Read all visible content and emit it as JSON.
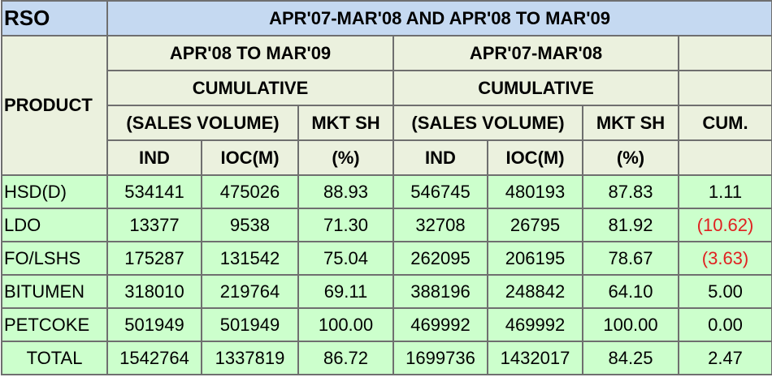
{
  "header": {
    "rso": "RSO",
    "title": "APR'07-MAR'08 AND APR'08 TO MAR'09",
    "product": "PRODUCT",
    "period_current": "APR'08 TO MAR'09",
    "period_previous": "APR'07-MAR'08",
    "cumulative_current": "CUMULATIVE",
    "cumulative_previous": "CUMULATIVE",
    "sales_volume_current": "(SALES VOLUME)",
    "sales_volume_previous": "(SALES VOLUME)",
    "mkt_sh_current": "MKT SH",
    "mkt_sh_previous": "MKT SH",
    "cum": "CUM.",
    "ind_current": "IND",
    "ioc_current": "IOC(M)",
    "pct_current": "(%)",
    "ind_previous": "IND",
    "ioc_previous": "IOC(M)",
    "pct_previous": "(%)"
  },
  "rows": [
    {
      "product": "HSD(D)",
      "ind_cur": "534141",
      "ioc_cur": "475026",
      "mkt_cur": "88.93",
      "ind_prev": "546745",
      "ioc_prev": "480193",
      "mkt_prev": "87.83",
      "cum": "1.11",
      "negative": false
    },
    {
      "product": "LDO",
      "ind_cur": "13377",
      "ioc_cur": "9538",
      "mkt_cur": "71.30",
      "ind_prev": "32708",
      "ioc_prev": "26795",
      "mkt_prev": "81.92",
      "cum": "(10.62)",
      "negative": true
    },
    {
      "product": "FO/LSHS",
      "ind_cur": "175287",
      "ioc_cur": "131542",
      "mkt_cur": "75.04",
      "ind_prev": "262095",
      "ioc_prev": "206195",
      "mkt_prev": "78.67",
      "cum": "(3.63)",
      "negative": true
    },
    {
      "product": "BITUMEN",
      "ind_cur": "318010",
      "ioc_cur": "219764",
      "mkt_cur": "69.11",
      "ind_prev": "388196",
      "ioc_prev": "248842",
      "mkt_prev": "64.10",
      "cum": "5.00",
      "negative": false
    },
    {
      "product": "PETCOKE",
      "ind_cur": "501949",
      "ioc_cur": "501949",
      "mkt_cur": "100.00",
      "ind_prev": "469992",
      "ioc_prev": "469992",
      "mkt_prev": "100.00",
      "cum": "0.00",
      "negative": false
    }
  ],
  "total": {
    "product": "TOTAL",
    "ind_cur": "1542764",
    "ioc_cur": "1337819",
    "mkt_cur": "86.72",
    "ind_prev": "1699736",
    "ioc_prev": "1432017",
    "mkt_prev": "84.25",
    "cum": "2.47"
  },
  "colors": {
    "header_blue": "#c5d9f1",
    "header_green": "#ebf1de",
    "row_green": "#ccffcc",
    "negative_red": "#e02020"
  }
}
